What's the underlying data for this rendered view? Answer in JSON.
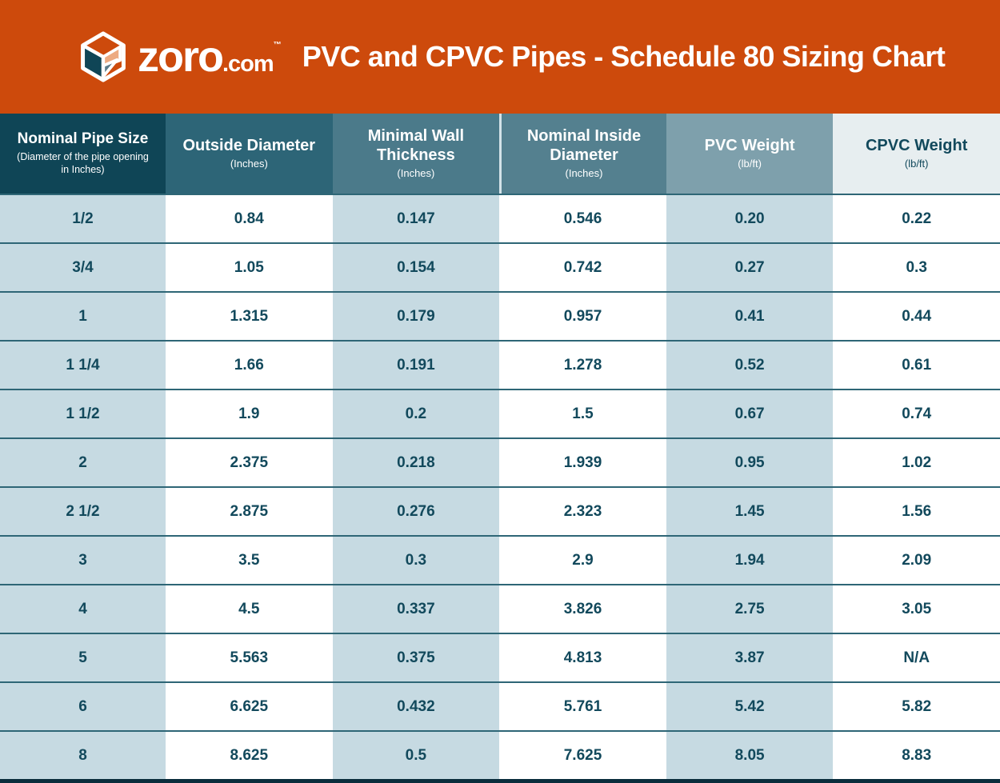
{
  "banner": {
    "brand": {
      "name": "zoro",
      "tld": ".com",
      "tm": "™"
    },
    "title": "PVC and CPVC Pipes - Schedule 80 Sizing Chart"
  },
  "theme": {
    "orange": "#cd4a0c",
    "stripe": "#c6dae2",
    "divider": "#2e6676",
    "text": "#12495c",
    "bottom": "#0a2d3c",
    "logo_teal": "#0f4556",
    "logo_salmon": "#edaa81",
    "logo_slate": "#5d7c8a"
  },
  "chart_data": {
    "type": "table",
    "title": "PVC and CPVC Pipes - Schedule 80 Sizing Chart",
    "columns": [
      {
        "title": "Nominal Pipe Size",
        "sub": "(Diameter of the pipe opening in Inches)",
        "bg": "#0f4556",
        "fg": "#ffffff"
      },
      {
        "title": "Outside Diameter",
        "sub": "(Inches)",
        "bg": "#2d6577",
        "fg": "#ffffff"
      },
      {
        "title": "Minimal Wall Thickness",
        "sub": "(Inches)",
        "bg": "#4b7a8a",
        "fg": "#ffffff"
      },
      {
        "title": "Nominal Inside Diameter",
        "sub": "(Inches)",
        "bg": "#54808f",
        "fg": "#ffffff"
      },
      {
        "title": "PVC Weight",
        "sub": "(lb/ft)",
        "bg": "#7ea0ac",
        "fg": "#ffffff"
      },
      {
        "title": "CPVC Weight",
        "sub": "(lb/ft)",
        "bg": "#e7eef0",
        "fg": "#12495c"
      }
    ],
    "rows": [
      [
        "1/2",
        "0.84",
        "0.147",
        "0.546",
        "0.20",
        "0.22"
      ],
      [
        "3/4",
        "1.05",
        "0.154",
        "0.742",
        "0.27",
        "0.3"
      ],
      [
        "1",
        "1.315",
        "0.179",
        "0.957",
        "0.41",
        "0.44"
      ],
      [
        "1 1/4",
        "1.66",
        "0.191",
        "1.278",
        "0.52",
        "0.61"
      ],
      [
        "1 1/2",
        "1.9",
        "0.2",
        "1.5",
        "0.67",
        "0.74"
      ],
      [
        "2",
        "2.375",
        "0.218",
        "1.939",
        "0.95",
        "1.02"
      ],
      [
        "2 1/2",
        "2.875",
        "0.276",
        "2.323",
        "1.45",
        "1.56"
      ],
      [
        "3",
        "3.5",
        "0.3",
        "2.9",
        "1.94",
        "2.09"
      ],
      [
        "4",
        "4.5",
        "0.337",
        "3.826",
        "2.75",
        "3.05"
      ],
      [
        "5",
        "5.563",
        "0.375",
        "4.813",
        "3.87",
        "N/A"
      ],
      [
        "6",
        "6.625",
        "0.432",
        "5.761",
        "5.42",
        "5.82"
      ],
      [
        "8",
        "8.625",
        "0.5",
        "7.625",
        "8.05",
        "8.83"
      ]
    ]
  }
}
